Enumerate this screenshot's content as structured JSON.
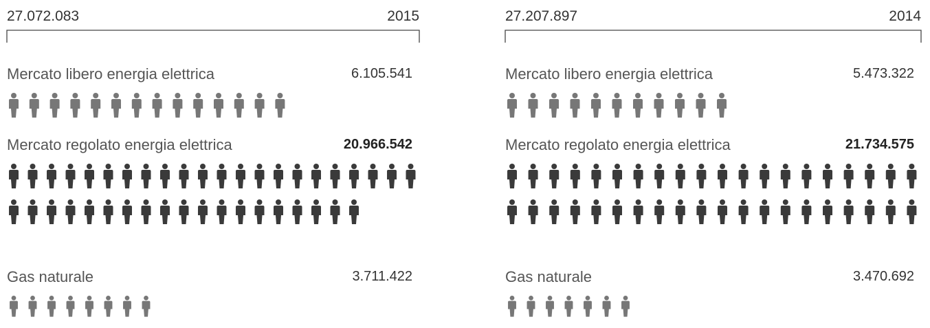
{
  "panels": [
    {
      "total": "27.072.083",
      "year": "2015",
      "items": [
        {
          "label": "Mercato libero energia elettrica",
          "value": "6.105.541"
        },
        {
          "label": "Mercato regolato energia elettrica",
          "value": "20.966.542"
        },
        {
          "label": "Gas naturale",
          "value": "3.711.422"
        }
      ]
    },
    {
      "total": "27.207.897",
      "year": "2014",
      "items": [
        {
          "label": "Mercato libero energia elettrica",
          "value": "5.473.322"
        },
        {
          "label": "Mercato regolato energia elettrica",
          "value": "21.734.575"
        },
        {
          "label": "Gas naturale",
          "value": "3.470.692"
        }
      ]
    }
  ]
}
